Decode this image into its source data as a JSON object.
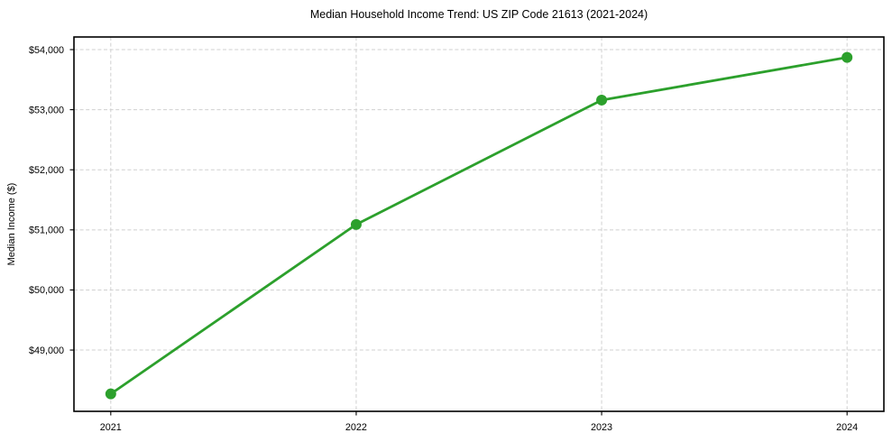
{
  "page": {
    "background": "#ffffff"
  },
  "chart_data": {
    "type": "line",
    "title": "Median Household Income Trend: US ZIP Code 21613 (2021-2024)",
    "xlabel": "",
    "ylabel": "Median Income ($)",
    "x": [
      2021,
      2022,
      2023,
      2024
    ],
    "series": [
      {
        "values": [
          48270,
          51090,
          53160,
          53870
        ],
        "marker": "circle"
      }
    ],
    "xticks": [
      2021,
      2022,
      2023,
      2024
    ],
    "xtick_labels": [
      "2021",
      "2022",
      "2023",
      "2024"
    ],
    "yticks": [
      49000,
      50000,
      51000,
      52000,
      53000,
      54000
    ],
    "ytick_labels": [
      "$49,000",
      "$50,000",
      "$51,000",
      "$52,000",
      "$53,000",
      "$54,000"
    ],
    "xlim": [
      2020.85,
      2024.15
    ],
    "ylim": [
      47980,
      54210
    ],
    "grid": true,
    "grid_style": "dashed",
    "legend": null,
    "colors": {
      "line": "#2ca02c",
      "grid": "#d0d0d0",
      "spine": "#000000",
      "text": "#000000",
      "background": "#ffffff"
    }
  }
}
